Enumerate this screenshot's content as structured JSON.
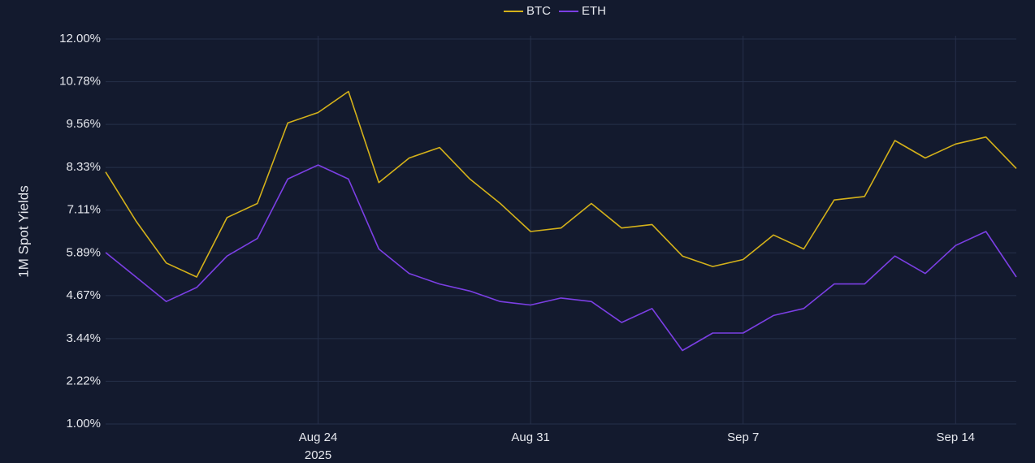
{
  "chart_data": {
    "type": "line",
    "y_label": "1M Spot Yields",
    "x": [
      "2025-08-17",
      "2025-08-18",
      "2025-08-19",
      "2025-08-20",
      "2025-08-21",
      "2025-08-22",
      "2025-08-23",
      "2025-08-24",
      "2025-08-25",
      "2025-08-26",
      "2025-08-27",
      "2025-08-28",
      "2025-08-29",
      "2025-08-30",
      "2025-08-31",
      "2025-09-01",
      "2025-09-02",
      "2025-09-03",
      "2025-09-04",
      "2025-09-05",
      "2025-09-06",
      "2025-09-07",
      "2025-09-08",
      "2025-09-09",
      "2025-09-10",
      "2025-09-11",
      "2025-09-12",
      "2025-09-13",
      "2025-09-14",
      "2025-09-15",
      "2025-09-16"
    ],
    "series": [
      {
        "name": "BTC",
        "color": "#d4b11a",
        "values": [
          8.2,
          6.8,
          5.6,
          5.2,
          6.9,
          7.3,
          9.6,
          9.9,
          10.5,
          7.9,
          8.6,
          8.9,
          8.0,
          7.3,
          6.5,
          6.6,
          7.3,
          6.6,
          6.7,
          5.8,
          5.5,
          5.7,
          6.4,
          6.0,
          7.4,
          7.5,
          9.1,
          8.6,
          9.0,
          9.2,
          8.3
        ]
      },
      {
        "name": "ETH",
        "color": "#7b3fe4",
        "values": [
          5.9,
          5.2,
          4.5,
          4.9,
          5.8,
          6.3,
          8.0,
          8.4,
          8.0,
          6.0,
          5.3,
          5.0,
          4.8,
          4.5,
          4.4,
          4.6,
          4.5,
          3.9,
          4.3,
          3.1,
          3.6,
          3.6,
          4.1,
          4.3,
          5.0,
          5.0,
          5.8,
          5.3,
          6.1,
          6.5,
          5.2
        ]
      }
    ],
    "xlim": [
      "2025-08-17",
      "2025-09-16"
    ],
    "xticks": [
      {
        "value": "2025-08-24",
        "label": "Aug 24"
      },
      {
        "value": "2025-08-31",
        "label": "Aug 31"
      },
      {
        "value": "2025-09-07",
        "label": "Sep 7"
      },
      {
        "value": "2025-09-14",
        "label": "Sep 14"
      }
    ],
    "x_year": "2025",
    "ylim": [
      1,
      12
    ],
    "yticks": [
      {
        "value": 1,
        "label": "1.00%"
      },
      {
        "value": 2.22,
        "label": "2.22%"
      },
      {
        "value": 3.44,
        "label": "3.44%"
      },
      {
        "value": 4.67,
        "label": "4.67%"
      },
      {
        "value": 5.89,
        "label": "5.89%"
      },
      {
        "value": 7.11,
        "label": "7.11%"
      },
      {
        "value": 8.33,
        "label": "8.33%"
      },
      {
        "value": 9.56,
        "label": "9.56%"
      },
      {
        "value": 10.78,
        "label": "10.78%"
      },
      {
        "value": 12,
        "label": "12.00%"
      }
    ],
    "grid": true,
    "legend": "top"
  }
}
